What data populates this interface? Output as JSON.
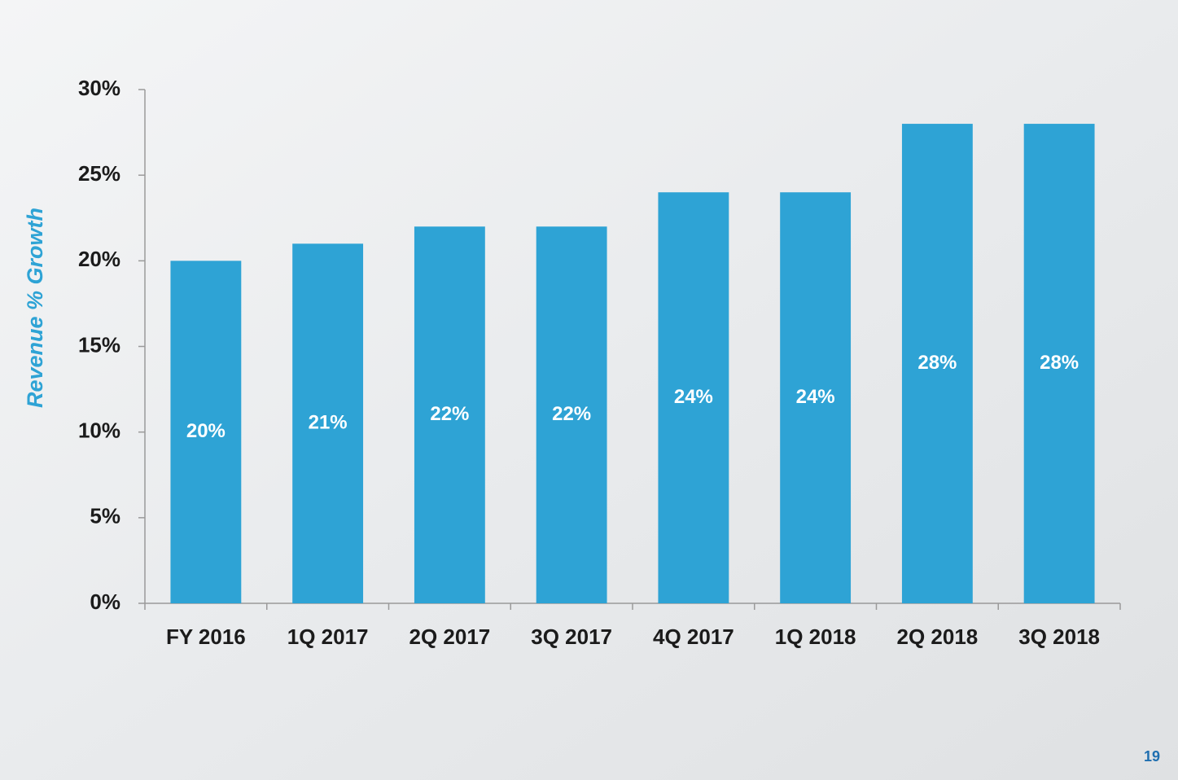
{
  "chart_data": {
    "type": "bar",
    "y_axis_label": "Revenue % Growth",
    "categories": [
      "FY 2016",
      "1Q 2017",
      "2Q 2017",
      "3Q 2017",
      "4Q 2017",
      "1Q 2018",
      "2Q 2018",
      "3Q 2018"
    ],
    "values": [
      20,
      21,
      22,
      22,
      24,
      24,
      28,
      28
    ],
    "value_labels": [
      "20%",
      "21%",
      "22%",
      "22%",
      "24%",
      "24%",
      "28%",
      "28%"
    ],
    "color": "#2ea3d5",
    "ylim": [
      0,
      30
    ],
    "yticks": [
      {
        "value": 0,
        "label": "0%"
      },
      {
        "value": 5,
        "label": "5%"
      },
      {
        "value": 10,
        "label": "10%"
      },
      {
        "value": 15,
        "label": "15%"
      },
      {
        "value": 20,
        "label": "20%"
      },
      {
        "value": 25,
        "label": "25%"
      },
      {
        "value": 30,
        "label": "30%"
      }
    ],
    "grid": false,
    "page_number": "19"
  }
}
